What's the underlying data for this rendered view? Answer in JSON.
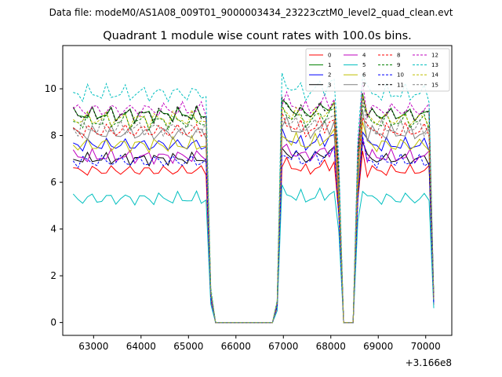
{
  "chart_data": {
    "type": "line",
    "suptitle": "Data file: modeM0/AS1A08_009T01_9000003434_23223cztM0_level2_quad_clean.evt",
    "title": "Quadrant 1 module wise count rates with 100.0s bins.",
    "xlabel": "",
    "ylabel": "",
    "x_offset_label": "+3.166e8",
    "xlim": [
      62350,
      70550
    ],
    "ylim": [
      -0.55,
      11.85
    ],
    "x_ticks": [
      63000,
      64000,
      65000,
      66000,
      67000,
      68000,
      69000,
      70000
    ],
    "y_ticks": [
      0,
      2,
      4,
      6,
      8,
      10
    ],
    "grid": false,
    "legend_position": "top-right",
    "x_start": 62570,
    "x_step": 100,
    "n_points": 77,
    "series_order_note": "Each series has 77 values at x = x_start + i*x_step (offset from 3.166e8).",
    "series": [
      {
        "name": "0",
        "color": "#ff0000",
        "dashed": false,
        "level": 6.5,
        "amp": 0.3,
        "phase": 0.3
      },
      {
        "name": "1",
        "color": "#008000",
        "dashed": false,
        "level": 8.9,
        "amp": 0.35,
        "phase": 1.1
      },
      {
        "name": "2",
        "color": "#0000ff",
        "dashed": false,
        "level": 7.6,
        "amp": 0.35,
        "phase": 2.0
      },
      {
        "name": "3",
        "color": "#000000",
        "dashed": false,
        "level": 7.0,
        "amp": 0.3,
        "phase": 2.7
      },
      {
        "name": "4",
        "color": "#bf00bf",
        "dashed": false,
        "level": 7.1,
        "amp": 0.35,
        "phase": 0.8
      },
      {
        "name": "5",
        "color": "#00bfbf",
        "dashed": false,
        "level": 5.3,
        "amp": 0.35,
        "phase": 1.6
      },
      {
        "name": "6",
        "color": "#bfbf00",
        "dashed": false,
        "level": 7.6,
        "amp": 0.4,
        "phase": 3.1
      },
      {
        "name": "7",
        "color": "#808080",
        "dashed": false,
        "level": 8.1,
        "amp": 0.4,
        "phase": 0.5
      },
      {
        "name": "8",
        "color": "#ff0000",
        "dashed": true,
        "level": 8.2,
        "amp": 0.4,
        "phase": 1.9
      },
      {
        "name": "9",
        "color": "#008000",
        "dashed": true,
        "level": 8.6,
        "amp": 0.4,
        "phase": 2.4
      },
      {
        "name": "10",
        "color": "#0000ff",
        "dashed": true,
        "level": 6.9,
        "amp": 0.35,
        "phase": 3.5
      },
      {
        "name": "11",
        "color": "#000000",
        "dashed": true,
        "level": 8.9,
        "amp": 0.4,
        "phase": 1.3
      },
      {
        "name": "12",
        "color": "#bf00bf",
        "dashed": true,
        "level": 9.1,
        "amp": 0.4,
        "phase": 0.1
      },
      {
        "name": "13",
        "color": "#00bfbf",
        "dashed": true,
        "level": 9.8,
        "amp": 0.45,
        "phase": 2.2
      },
      {
        "name": "14",
        "color": "#bfbf00",
        "dashed": true,
        "level": 8.7,
        "amp": 0.4,
        "phase": 2.9
      },
      {
        "name": "15",
        "color": "#808080",
        "dashed": true,
        "level": 8.3,
        "amp": 0.4,
        "phase": 3.8
      }
    ],
    "envelope": [
      {
        "x": 62570,
        "f": 1.0
      },
      {
        "x": 65370,
        "f": 1.0
      },
      {
        "x": 65470,
        "f": 0.15
      },
      {
        "x": 65570,
        "f": 0.0
      },
      {
        "x": 66770,
        "f": 0.0
      },
      {
        "x": 66870,
        "f": 0.1
      },
      {
        "x": 66970,
        "f": 1.05
      },
      {
        "x": 67470,
        "f": 1.0
      },
      {
        "x": 68070,
        "f": 1.05
      },
      {
        "x": 68170,
        "f": 0.7
      },
      {
        "x": 68270,
        "f": 0.0
      },
      {
        "x": 68470,
        "f": 0.0
      },
      {
        "x": 68570,
        "f": 0.8
      },
      {
        "x": 68670,
        "f": 1.12
      },
      {
        "x": 68770,
        "f": 1.0
      },
      {
        "x": 70070,
        "f": 1.0
      },
      {
        "x": 70170,
        "f": 0.12
      }
    ]
  }
}
